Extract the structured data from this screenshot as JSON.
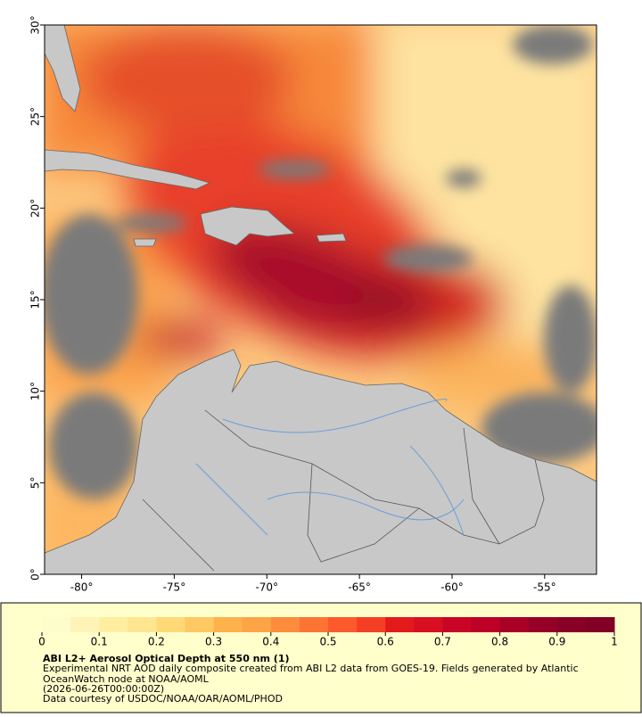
{
  "map": {
    "xaxis": {
      "lim": [
        -82,
        -52.2
      ],
      "ticks": [
        {
          "value": -80,
          "label": "-80°"
        },
        {
          "value": -75,
          "label": "-75°"
        },
        {
          "value": -70,
          "label": "-70°"
        },
        {
          "value": -65,
          "label": "-65°"
        },
        {
          "value": -60,
          "label": "-60°"
        },
        {
          "value": -55,
          "label": "-55°"
        }
      ]
    },
    "yaxis": {
      "lim": [
        0,
        30
      ],
      "ticks": [
        {
          "value": 0,
          "label": "0°"
        },
        {
          "value": 5,
          "label": "5°"
        },
        {
          "value": 10,
          "label": "10°"
        },
        {
          "value": 15,
          "label": "15°"
        },
        {
          "value": 20,
          "label": "20°"
        },
        {
          "value": 25,
          "label": "25°"
        },
        {
          "value": 30,
          "label": "30°"
        }
      ]
    },
    "colorbar": {
      "lim": [
        0,
        1
      ],
      "ticks": [
        0,
        0.1,
        0.2,
        0.3,
        0.4,
        0.5,
        0.6,
        0.7,
        0.8,
        0.9,
        1
      ],
      "colors": [
        "#fffccc",
        "#fff4b8",
        "#ffeda0",
        "#fee590",
        "#fed976",
        "#fec862",
        "#feb24c",
        "#fda446",
        "#fd8d3c",
        "#fc7434",
        "#fc5a2c",
        "#f43f24",
        "#e31a1c",
        "#d70f21",
        "#c80526",
        "#bd0026",
        "#a80026",
        "#960026",
        "#880026",
        "#800026"
      ]
    },
    "title": "ABI L2+ Aerosol Optical Depth at 550 nm (1)",
    "description": [
      "Experimental NRT AOD daily composite created from ABI L2 data from GOES-19. Fields generated by Atlantic",
      "OceanWatch node at NOAA/AOML",
      "(2026-06-26T00:00:00Z)",
      "Data courtesy of USDOC/NOAA/OAR/AOML/PHOD"
    ]
  }
}
